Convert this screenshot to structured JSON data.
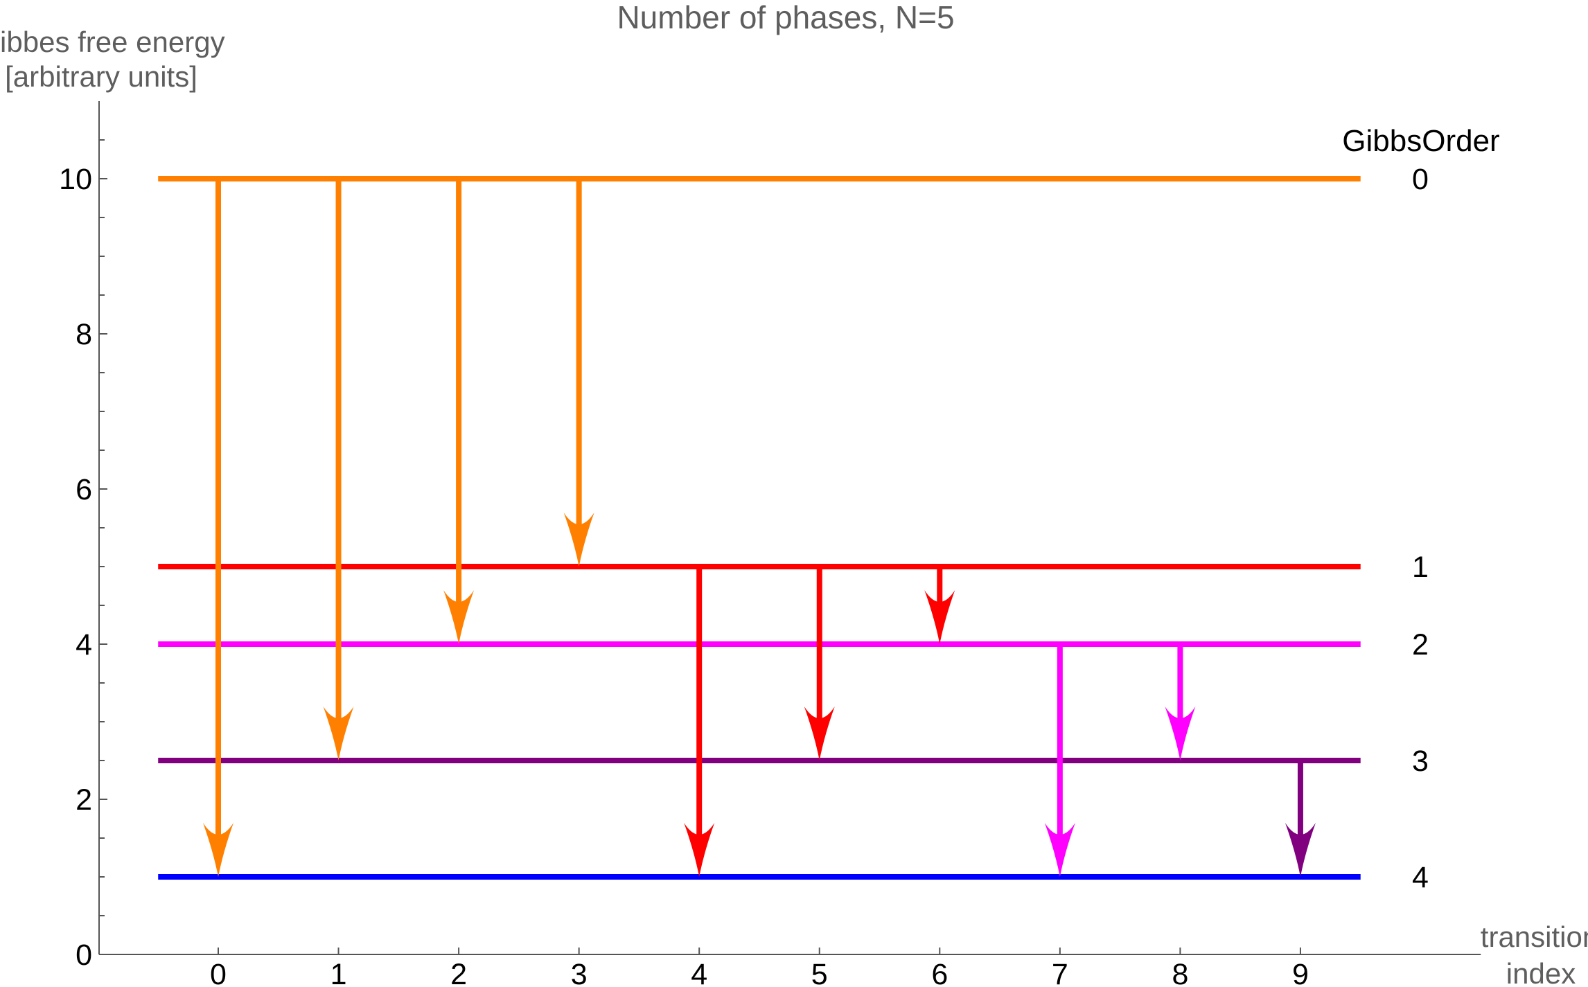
{
  "title": "Number of phases, N=5",
  "y_axis": {
    "label_line1": "Gibbes free energy",
    "label_line2": "[arbitrary units]",
    "major_tick_labels": [
      "0",
      "2",
      "4",
      "6",
      "8",
      "10"
    ]
  },
  "x_axis": {
    "label_line1": "transition",
    "label_line2": "index",
    "tick_labels": [
      "0",
      "1",
      "2",
      "3",
      "4",
      "5",
      "6",
      "7",
      "8",
      "9"
    ]
  },
  "legend": {
    "title": "GibbsOrder",
    "entries": [
      "0",
      "1",
      "2",
      "3",
      "4"
    ]
  },
  "chart_data": {
    "type": "line",
    "subtype": "energy-level-transition-diagram",
    "title": "Number of phases, N=5",
    "xlabel": "transition index",
    "ylabel": "Gibbes free energy [arbitrary units]",
    "legend_title": "GibbsOrder",
    "xlim": [
      -1,
      10.5
    ],
    "ylim": [
      0,
      11
    ],
    "x_ticks": [
      0,
      1,
      2,
      3,
      4,
      5,
      6,
      7,
      8,
      9
    ],
    "y_major_ticks": [
      0,
      2,
      4,
      6,
      8,
      10
    ],
    "y_minor_tick_step": 0.5,
    "axis_color": "#555555",
    "label_gray": "#5E5E5E",
    "level_x_start": -0.5,
    "level_x_end": 9.5,
    "levels": [
      {
        "gibbs_order": "0",
        "energy": 10,
        "color": "#FF8000"
      },
      {
        "gibbs_order": "1",
        "energy": 5,
        "color": "#FF0000"
      },
      {
        "gibbs_order": "2",
        "energy": 4,
        "color": "#FF00FF"
      },
      {
        "gibbs_order": "3",
        "energy": 2.5,
        "color": "#800080"
      },
      {
        "gibbs_order": "4",
        "energy": 1,
        "color": "#0000FF"
      }
    ],
    "transitions": [
      {
        "index": 0,
        "from_energy": 10,
        "to_energy": 1,
        "color": "#FF8000"
      },
      {
        "index": 1,
        "from_energy": 10,
        "to_energy": 2.5,
        "color": "#FF8000"
      },
      {
        "index": 2,
        "from_energy": 10,
        "to_energy": 4,
        "color": "#FF8000"
      },
      {
        "index": 3,
        "from_energy": 10,
        "to_energy": 5,
        "color": "#FF8000"
      },
      {
        "index": 4,
        "from_energy": 5,
        "to_energy": 1,
        "color": "#FF0000"
      },
      {
        "index": 5,
        "from_energy": 5,
        "to_energy": 2.5,
        "color": "#FF0000"
      },
      {
        "index": 6,
        "from_energy": 5,
        "to_energy": 4,
        "color": "#FF0000"
      },
      {
        "index": 7,
        "from_energy": 4,
        "to_energy": 1,
        "color": "#FF00FF"
      },
      {
        "index": 8,
        "from_energy": 4,
        "to_energy": 2.5,
        "color": "#FF00FF"
      },
      {
        "index": 9,
        "from_energy": 2.5,
        "to_energy": 1,
        "color": "#800080"
      }
    ]
  }
}
